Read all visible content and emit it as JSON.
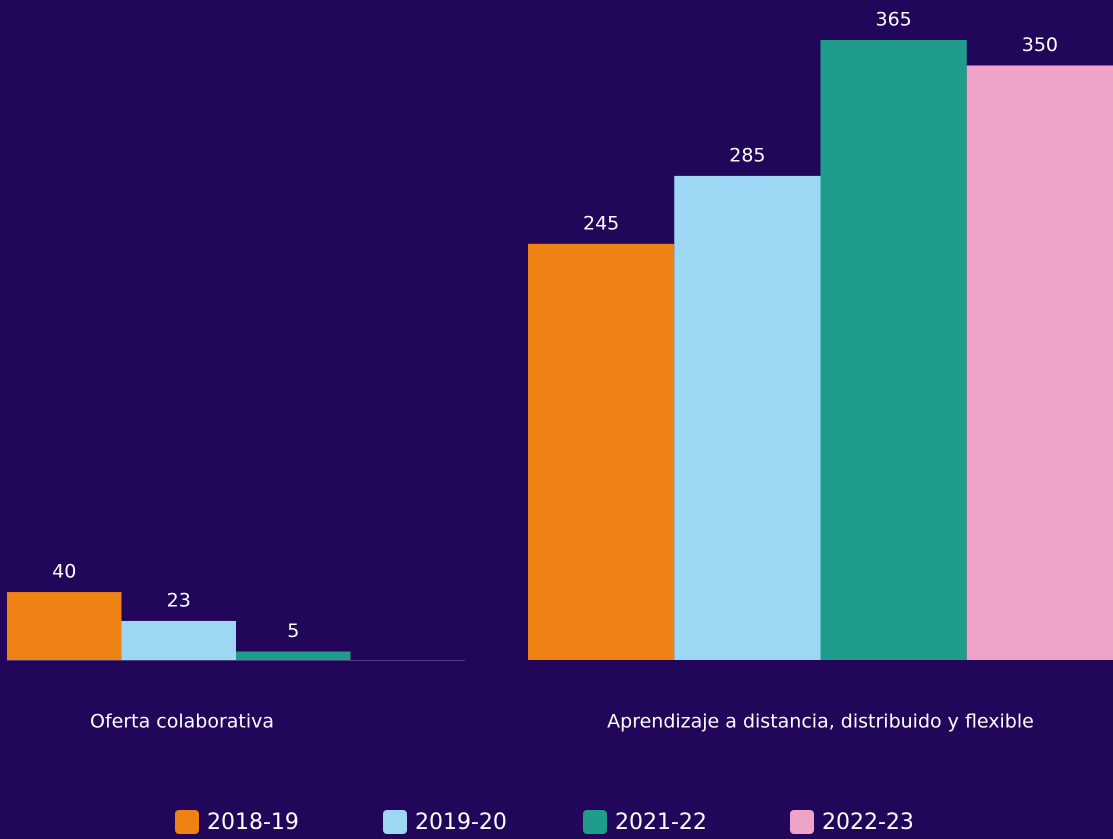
{
  "chart_data": {
    "type": "bar",
    "categories": [
      "Oferta colaborativa",
      "Aprendizaje a distancia, distribuido y flexible"
    ],
    "series": [
      {
        "name": "2018-19",
        "color": "#ef8214",
        "values": [
          40,
          245
        ]
      },
      {
        "name": "2019-20",
        "color": "#9dd7f4",
        "values": [
          23,
          285
        ]
      },
      {
        "name": "2021-22",
        "color": "#1f9c8a",
        "values": [
          5,
          365
        ]
      },
      {
        "name": "2022-23",
        "color": "#f0a3c8",
        "values": [
          null,
          350
        ]
      }
    ],
    "ylim": [
      0,
      365
    ]
  }
}
